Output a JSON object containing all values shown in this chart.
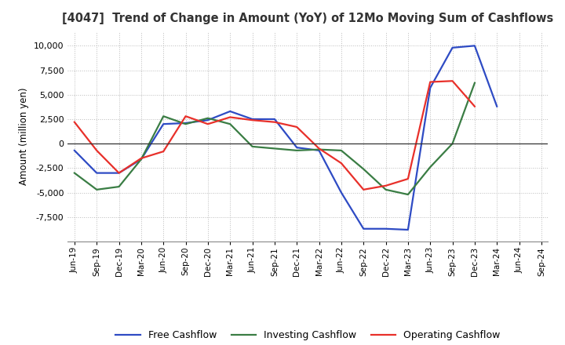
{
  "title": "[4047]  Trend of Change in Amount (YoY) of 12Mo Moving Sum of Cashflows",
  "ylabel": "Amount (million yen)",
  "x_labels": [
    "Jun-19",
    "Sep-19",
    "Dec-19",
    "Mar-20",
    "Jun-20",
    "Sep-20",
    "Dec-20",
    "Mar-21",
    "Jun-21",
    "Sep-21",
    "Dec-21",
    "Mar-22",
    "Jun-22",
    "Sep-22",
    "Dec-22",
    "Mar-23",
    "Jun-23",
    "Sep-23",
    "Dec-23",
    "Mar-24",
    "Jun-24",
    "Sep-24"
  ],
  "operating": [
    2200,
    -700,
    -3000,
    -1500,
    -800,
    2800,
    2000,
    2700,
    2400,
    2200,
    1700,
    -500,
    -2000,
    -4700,
    -4300,
    -3600,
    6300,
    6400,
    3800,
    null,
    null,
    null
  ],
  "investing": [
    -3000,
    -4700,
    -4400,
    -1600,
    2800,
    2000,
    2600,
    2000,
    -300,
    -500,
    -700,
    -600,
    -700,
    -2600,
    -4700,
    -5200,
    -2400,
    0,
    6200,
    null,
    null,
    null
  ],
  "free": [
    -700,
    -3000,
    -3000,
    -1600,
    2000,
    2100,
    2400,
    3300,
    2500,
    2500,
    -400,
    -700,
    -5000,
    -8700,
    -8700,
    -8800,
    5700,
    9800,
    10000,
    3800,
    null,
    null
  ],
  "operating_color": "#e8302a",
  "investing_color": "#3a7d44",
  "free_color": "#2e4bc4",
  "ylim": [
    -10000,
    11500
  ],
  "yticks": [
    -7500,
    -5000,
    -2500,
    0,
    2500,
    5000,
    7500,
    10000
  ],
  "grid_color": "#bbbbbb",
  "background_color": "#ffffff",
  "legend_labels": [
    "Operating Cashflow",
    "Investing Cashflow",
    "Free Cashflow"
  ]
}
